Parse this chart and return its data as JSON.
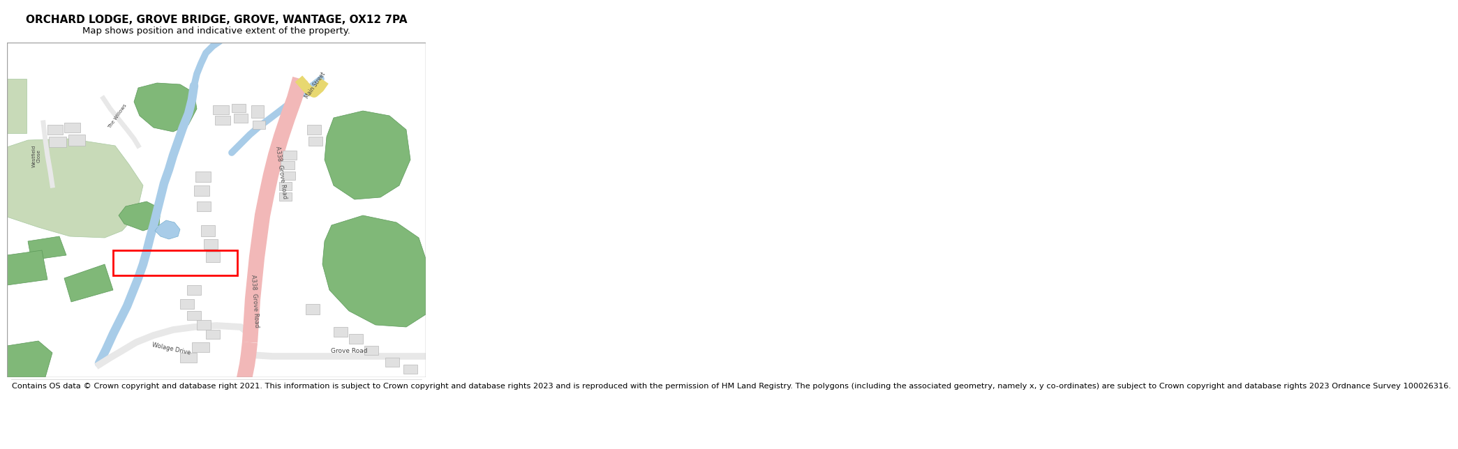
{
  "title": "ORCHARD LODGE, GROVE BRIDGE, GROVE, WANTAGE, OX12 7PA",
  "subtitle": "Map shows position and indicative extent of the property.",
  "footer": "Contains OS data © Crown copyright and database right 2021. This information is subject to Crown copyright and database rights 2023 and is reproduced with the permission of HM Land Registry. The polygons (including the associated geometry, namely x, y co-ordinates) are subject to Crown copyright and database rights 2023 Ordnance Survey 100026316.",
  "bg_color": "#ffffff",
  "map_bg": "#ffffff",
  "road_pink": "#f2b8b8",
  "road_yellow": "#e8d870",
  "water_color": "#a8cce8",
  "green_dark": "#80b878",
  "green_allotment": "#c8dab8",
  "building_color": "#e0e0e0",
  "building_stroke": "#b8b8b8",
  "red_rect": "#ff0000",
  "title_fontsize": 11,
  "subtitle_fontsize": 9.5,
  "footer_fontsize": 8.2
}
